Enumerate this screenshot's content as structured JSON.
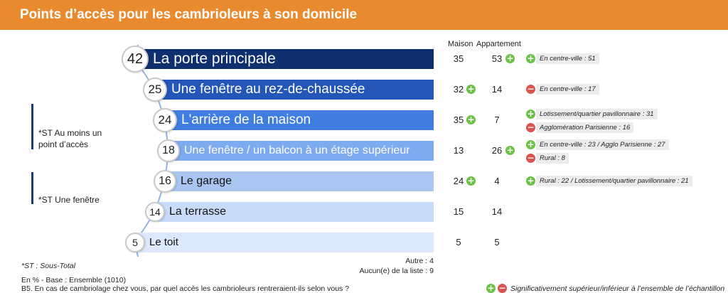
{
  "title": "Points d’accès pour les cambrioleurs à son domicile",
  "columns": {
    "maison": "Maison",
    "appartement": "Appartement"
  },
  "subtotals": [
    {
      "label": "*ST Au moins un point d’accès"
    },
    {
      "label": "*ST Une fenêtre"
    }
  ],
  "chart_data": {
    "type": "bar",
    "orientation": "horizontal",
    "categories": [
      "La porte principale",
      "Une fenêtre au rez-de-chaussée",
      "L'arrière de la maison",
      "Une fenêtre / un balcon à un étage supérieur",
      "Le garage",
      "La terrasse",
      "Le toit"
    ],
    "values": [
      42,
      25,
      24,
      18,
      16,
      14,
      5
    ],
    "series": [
      {
        "name": "Maison",
        "values": [
          35,
          32,
          35,
          13,
          24,
          15,
          5
        ]
      },
      {
        "name": "Appartement",
        "values": [
          53,
          14,
          7,
          26,
          4,
          14,
          5
        ]
      }
    ],
    "significance": {
      "maison": [
        "",
        "plus",
        "plus",
        "",
        "plus",
        "",
        ""
      ],
      "appartement": [
        "plus",
        "",
        "",
        "plus",
        "",
        "",
        ""
      ]
    },
    "notes": [
      [
        {
          "sign": "plus",
          "text": "En centre-ville : 51"
        }
      ],
      [
        {
          "sign": "minus",
          "text": "En centre-ville : 17"
        }
      ],
      [
        {
          "sign": "plus",
          "text": "Lotissement/quartier pavillonnaire : 31"
        },
        {
          "sign": "minus",
          "text": "Agglomération Parisienne : 16"
        }
      ],
      [
        {
          "sign": "plus",
          "text": "En centre-ville : 23 / Agglo Parisienne : 27"
        },
        {
          "sign": "minus",
          "text": "Rural : 8"
        }
      ],
      [
        {
          "sign": "plus",
          "text": "Rural : 22 / Lotissement/quartier pavillonnaire : 21"
        }
      ],
      [],
      []
    ],
    "colors": [
      "#0f2f6e",
      "#2356b8",
      "#3f7ee0",
      "#7eaaf0",
      "#a9c6f3",
      "#c8dbf8",
      "#dce8fb"
    ],
    "label_colors": [
      "#ffffff",
      "#ffffff",
      "#ffffff",
      "#ffffff",
      "#111111",
      "#111111",
      "#111111"
    ],
    "unit": "%"
  },
  "footer": {
    "st_note": "*ST : Sous-Total",
    "autre": "Autre : 4",
    "aucun": "Aucun(e) de la liste : 9",
    "base": "En % - Base : Ensemble (1010)",
    "question": "B5. En cas de cambriolage chez vous, par quel accès les cambrioleurs rentreraient-ils selon vous ?",
    "legend": "Significativement supérieur/inférieur à l’ensemble de l’échantillon"
  }
}
